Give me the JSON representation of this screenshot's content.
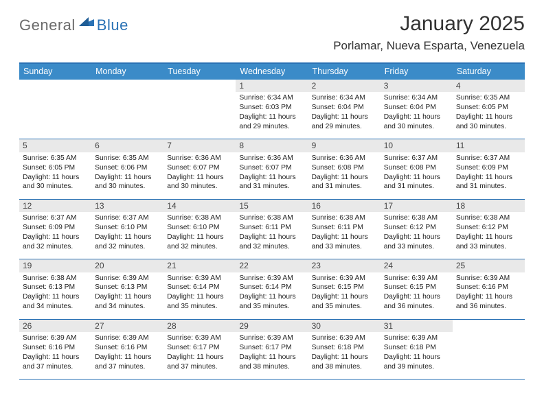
{
  "brand": {
    "general": "General",
    "blue": "Blue"
  },
  "title": "January 2025",
  "location": "Porlamar, Nueva Esparta, Venezuela",
  "weekdays": [
    "Sunday",
    "Monday",
    "Tuesday",
    "Wednesday",
    "Thursday",
    "Friday",
    "Saturday"
  ],
  "colors": {
    "accent": "#2a72b5",
    "header_bg": "#3b8bc8",
    "daynum_bg": "#e9e9e9",
    "text": "#222222",
    "logo_gray": "#6b6b6b"
  },
  "weeks": [
    {
      "cells": [
        {
          "day": "",
          "lines": [
            "",
            "",
            "",
            ""
          ],
          "empty": true
        },
        {
          "day": "",
          "lines": [
            "",
            "",
            "",
            ""
          ],
          "empty": true
        },
        {
          "day": "",
          "lines": [
            "",
            "",
            "",
            ""
          ],
          "empty": true
        },
        {
          "day": "1",
          "lines": [
            "Sunrise: 6:34 AM",
            "Sunset: 6:03 PM",
            "Daylight: 11 hours",
            "and 29 minutes."
          ]
        },
        {
          "day": "2",
          "lines": [
            "Sunrise: 6:34 AM",
            "Sunset: 6:04 PM",
            "Daylight: 11 hours",
            "and 29 minutes."
          ]
        },
        {
          "day": "3",
          "lines": [
            "Sunrise: 6:34 AM",
            "Sunset: 6:04 PM",
            "Daylight: 11 hours",
            "and 30 minutes."
          ]
        },
        {
          "day": "4",
          "lines": [
            "Sunrise: 6:35 AM",
            "Sunset: 6:05 PM",
            "Daylight: 11 hours",
            "and 30 minutes."
          ]
        }
      ]
    },
    {
      "cells": [
        {
          "day": "5",
          "lines": [
            "Sunrise: 6:35 AM",
            "Sunset: 6:05 PM",
            "Daylight: 11 hours",
            "and 30 minutes."
          ]
        },
        {
          "day": "6",
          "lines": [
            "Sunrise: 6:35 AM",
            "Sunset: 6:06 PM",
            "Daylight: 11 hours",
            "and 30 minutes."
          ]
        },
        {
          "day": "7",
          "lines": [
            "Sunrise: 6:36 AM",
            "Sunset: 6:07 PM",
            "Daylight: 11 hours",
            "and 30 minutes."
          ]
        },
        {
          "day": "8",
          "lines": [
            "Sunrise: 6:36 AM",
            "Sunset: 6:07 PM",
            "Daylight: 11 hours",
            "and 31 minutes."
          ]
        },
        {
          "day": "9",
          "lines": [
            "Sunrise: 6:36 AM",
            "Sunset: 6:08 PM",
            "Daylight: 11 hours",
            "and 31 minutes."
          ]
        },
        {
          "day": "10",
          "lines": [
            "Sunrise: 6:37 AM",
            "Sunset: 6:08 PM",
            "Daylight: 11 hours",
            "and 31 minutes."
          ]
        },
        {
          "day": "11",
          "lines": [
            "Sunrise: 6:37 AM",
            "Sunset: 6:09 PM",
            "Daylight: 11 hours",
            "and 31 minutes."
          ]
        }
      ]
    },
    {
      "cells": [
        {
          "day": "12",
          "lines": [
            "Sunrise: 6:37 AM",
            "Sunset: 6:09 PM",
            "Daylight: 11 hours",
            "and 32 minutes."
          ]
        },
        {
          "day": "13",
          "lines": [
            "Sunrise: 6:37 AM",
            "Sunset: 6:10 PM",
            "Daylight: 11 hours",
            "and 32 minutes."
          ]
        },
        {
          "day": "14",
          "lines": [
            "Sunrise: 6:38 AM",
            "Sunset: 6:10 PM",
            "Daylight: 11 hours",
            "and 32 minutes."
          ]
        },
        {
          "day": "15",
          "lines": [
            "Sunrise: 6:38 AM",
            "Sunset: 6:11 PM",
            "Daylight: 11 hours",
            "and 32 minutes."
          ]
        },
        {
          "day": "16",
          "lines": [
            "Sunrise: 6:38 AM",
            "Sunset: 6:11 PM",
            "Daylight: 11 hours",
            "and 33 minutes."
          ]
        },
        {
          "day": "17",
          "lines": [
            "Sunrise: 6:38 AM",
            "Sunset: 6:12 PM",
            "Daylight: 11 hours",
            "and 33 minutes."
          ]
        },
        {
          "day": "18",
          "lines": [
            "Sunrise: 6:38 AM",
            "Sunset: 6:12 PM",
            "Daylight: 11 hours",
            "and 33 minutes."
          ]
        }
      ]
    },
    {
      "cells": [
        {
          "day": "19",
          "lines": [
            "Sunrise: 6:38 AM",
            "Sunset: 6:13 PM",
            "Daylight: 11 hours",
            "and 34 minutes."
          ]
        },
        {
          "day": "20",
          "lines": [
            "Sunrise: 6:39 AM",
            "Sunset: 6:13 PM",
            "Daylight: 11 hours",
            "and 34 minutes."
          ]
        },
        {
          "day": "21",
          "lines": [
            "Sunrise: 6:39 AM",
            "Sunset: 6:14 PM",
            "Daylight: 11 hours",
            "and 35 minutes."
          ]
        },
        {
          "day": "22",
          "lines": [
            "Sunrise: 6:39 AM",
            "Sunset: 6:14 PM",
            "Daylight: 11 hours",
            "and 35 minutes."
          ]
        },
        {
          "day": "23",
          "lines": [
            "Sunrise: 6:39 AM",
            "Sunset: 6:15 PM",
            "Daylight: 11 hours",
            "and 35 minutes."
          ]
        },
        {
          "day": "24",
          "lines": [
            "Sunrise: 6:39 AM",
            "Sunset: 6:15 PM",
            "Daylight: 11 hours",
            "and 36 minutes."
          ]
        },
        {
          "day": "25",
          "lines": [
            "Sunrise: 6:39 AM",
            "Sunset: 6:16 PM",
            "Daylight: 11 hours",
            "and 36 minutes."
          ]
        }
      ]
    },
    {
      "cells": [
        {
          "day": "26",
          "lines": [
            "Sunrise: 6:39 AM",
            "Sunset: 6:16 PM",
            "Daylight: 11 hours",
            "and 37 minutes."
          ]
        },
        {
          "day": "27",
          "lines": [
            "Sunrise: 6:39 AM",
            "Sunset: 6:16 PM",
            "Daylight: 11 hours",
            "and 37 minutes."
          ]
        },
        {
          "day": "28",
          "lines": [
            "Sunrise: 6:39 AM",
            "Sunset: 6:17 PM",
            "Daylight: 11 hours",
            "and 37 minutes."
          ]
        },
        {
          "day": "29",
          "lines": [
            "Sunrise: 6:39 AM",
            "Sunset: 6:17 PM",
            "Daylight: 11 hours",
            "and 38 minutes."
          ]
        },
        {
          "day": "30",
          "lines": [
            "Sunrise: 6:39 AM",
            "Sunset: 6:18 PM",
            "Daylight: 11 hours",
            "and 38 minutes."
          ]
        },
        {
          "day": "31",
          "lines": [
            "Sunrise: 6:39 AM",
            "Sunset: 6:18 PM",
            "Daylight: 11 hours",
            "and 39 minutes."
          ]
        },
        {
          "day": "",
          "lines": [
            "",
            "",
            "",
            ""
          ],
          "empty": true
        }
      ]
    }
  ]
}
